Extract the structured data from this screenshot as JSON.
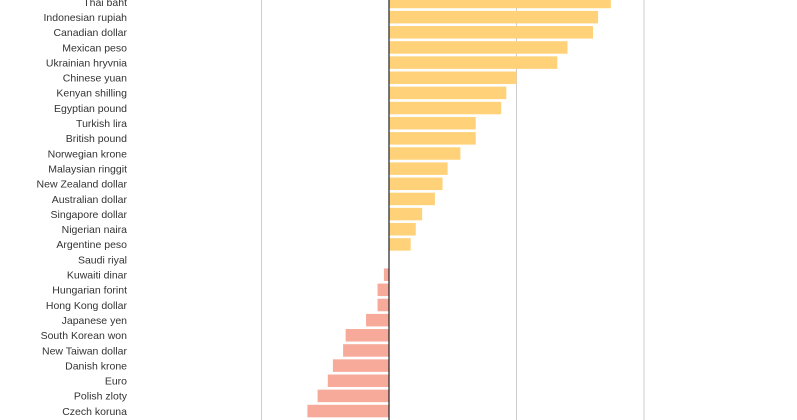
{
  "chart_data": {
    "type": "bar",
    "orientation": "horizontal",
    "title": "",
    "xlabel": "",
    "ylabel": "",
    "grid": true,
    "xlim": [
      -10,
      16
    ],
    "gridlines": [
      -5,
      0,
      5,
      10
    ],
    "colors": {
      "positive": "#ffd27a",
      "negative": "#f7a99a",
      "zero_line": "#222222",
      "grid": "#cccccc"
    },
    "categories": [
      "Thai baht",
      "Indonesian rupiah",
      "Canadian dollar",
      "Mexican peso",
      "Ukrainian hryvnia",
      "Chinese yuan",
      "Kenyan shilling",
      "Egyptian pound",
      "Turkish lira",
      "British pound",
      "Norwegian krone",
      "Malaysian ringgit",
      "New Zealand dollar",
      "Australian dollar",
      "Singapore dollar",
      "Nigerian naira",
      "Argentine peso",
      "Saudi riyal",
      "Kuwaiti dinar",
      "Hungarian forint",
      "Hong Kong dollar",
      "Japanese yen",
      "South Korean won",
      "New Taiwan dollar",
      "Danish krone",
      "Euro",
      "Polish zloty",
      "Czech koruna"
    ],
    "values": [
      8.7,
      8.2,
      8.0,
      7.0,
      6.6,
      5.0,
      4.6,
      4.4,
      3.4,
      3.4,
      2.8,
      2.3,
      2.1,
      1.8,
      1.3,
      1.05,
      0.85,
      0.0,
      -0.2,
      -0.45,
      -0.45,
      -0.9,
      -1.7,
      -1.8,
      -2.2,
      -2.4,
      -2.8,
      -3.2
    ]
  }
}
